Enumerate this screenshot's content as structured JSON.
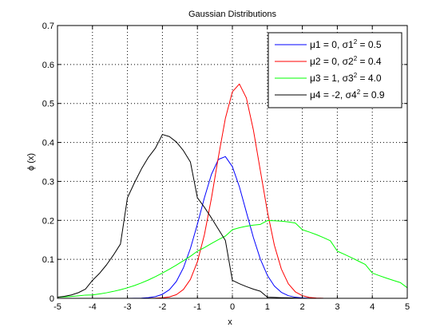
{
  "chart_data": {
    "type": "line",
    "title": "Gaussian Distributions",
    "xlabel": "x",
    "ylabel": "ϕ (x)",
    "xlim": [
      -5,
      5
    ],
    "ylim": [
      0,
      0.7
    ],
    "x_ticks": [
      "-5",
      "-4",
      "-3",
      "-2",
      "-1",
      "0",
      "1",
      "2",
      "3",
      "4",
      "5"
    ],
    "y_ticks": [
      "0",
      "0.1",
      "0.2",
      "0.3",
      "0.4",
      "0.5",
      "0.6",
      "0.7"
    ],
    "grid": true,
    "legend_position": "top-right",
    "x_values": [
      -5,
      -4.8,
      -4.6,
      -4.4,
      -4.2,
      -4,
      -3.8,
      -3.6,
      -3.4,
      -3.2,
      -3,
      -2.8,
      -2.6,
      -2.4,
      -2.2,
      -2,
      -1.8,
      -1.6,
      -1.4,
      -1.2,
      -1,
      -0.8,
      -0.6,
      -0.4,
      -0.2,
      0,
      0.2,
      0.4,
      0.6,
      0.8,
      1,
      1.2,
      1.4,
      1.6,
      1.8,
      2,
      2.2,
      2.4,
      2.6,
      2.8,
      3,
      3.2,
      3.4,
      3.6,
      3.8,
      4,
      4.2,
      4.4,
      4.6,
      4.8,
      5
    ],
    "series": [
      {
        "label_parts": [
          "μ1 = 0, σ1",
          "2",
          " = 0.5"
        ],
        "color": "#0000ff",
        "values": [
          0,
          0,
          0,
          0,
          0,
          0,
          0,
          0,
          0,
          0,
          0.0001,
          0.0002,
          0.0006,
          0.0017,
          0.0044,
          0.0103,
          0.0222,
          0.0435,
          0.0783,
          0.1279,
          0.1904,
          0.2579,
          0.3178,
          0.3564,
          0.3637,
          0.3378,
          0.2863,
          0.2212,
          0.1561,
          0.1004,
          0.0589,
          0.0315,
          0.0153,
          0.0068,
          0.0027,
          0.001,
          0.0003,
          0.0001,
          0,
          0,
          0,
          0,
          0,
          0,
          0,
          0,
          0,
          0,
          0,
          0,
          0
        ]
      },
      {
        "label_parts": [
          "μ2 = 0, σ2",
          "2",
          " = 0.4"
        ],
        "color": "#ff0000",
        "values": [
          0,
          0,
          0,
          0,
          0,
          0,
          0,
          0,
          0,
          0,
          0,
          0,
          0,
          0.0001,
          0.0004,
          0.0012,
          0.0036,
          0.0095,
          0.0226,
          0.0485,
          0.0938,
          0.1633,
          0.2564,
          0.3626,
          0.4619,
          0.53,
          0.55,
          0.5141,
          0.4322,
          0.3274,
          0.2231,
          0.1364,
          0.0751,
          0.0372,
          0.0166,
          0.0067,
          0.0024,
          0.0008,
          0.0002,
          0.0001,
          0,
          0,
          0,
          0,
          0,
          0,
          0,
          0,
          0,
          0,
          0
        ]
      },
      {
        "label_parts": [
          "μ3 = 1, σ3",
          "2",
          " = 4.0"
        ],
        "color": "#00ff00",
        "values": [
          0.0027,
          0.0036,
          0.0048,
          0.0064,
          0.0083,
          0.0088,
          0.0112,
          0.0142,
          0.0178,
          0.022,
          0.027,
          0.0328,
          0.0395,
          0.0471,
          0.0556,
          0.0648,
          0.0748,
          0.0854,
          0.0965,
          0.1078,
          0.121,
          0.1301,
          0.1407,
          0.1506,
          0.1597,
          0.176,
          0.1812,
          0.185,
          0.1878,
          0.1896,
          0.1995,
          0.1991,
          0.198,
          0.196,
          0.1931,
          0.176,
          0.17,
          0.1635,
          0.156,
          0.1478,
          0.121,
          0.113,
          0.1045,
          0.0957,
          0.0869,
          0.0648,
          0.0582,
          0.052,
          0.046,
          0.0405,
          0.027
        ]
      },
      {
        "label_parts": [
          "μ4 = -2, σ4",
          "2",
          " = 0.9"
        ],
        "color": "#000000",
        "values": [
          0.0029,
          0.0051,
          0.0087,
          0.0146,
          0.0236,
          0.0461,
          0.0639,
          0.0857,
          0.1111,
          0.1393,
          0.258,
          0.2965,
          0.332,
          0.362,
          0.3855,
          0.4205,
          0.415,
          0.401,
          0.379,
          0.3498,
          0.258,
          0.2337,
          0.2063,
          0.1774,
          0.1483,
          0.0461,
          0.0375,
          0.03,
          0.0236,
          0.0182,
          0.0029,
          0.0022,
          0.0016,
          0.0012,
          0.0008,
          0.0001,
          0.0001,
          0,
          0,
          0,
          0,
          0,
          0,
          0,
          0,
          0,
          0,
          0,
          0,
          0,
          0
        ]
      }
    ]
  }
}
